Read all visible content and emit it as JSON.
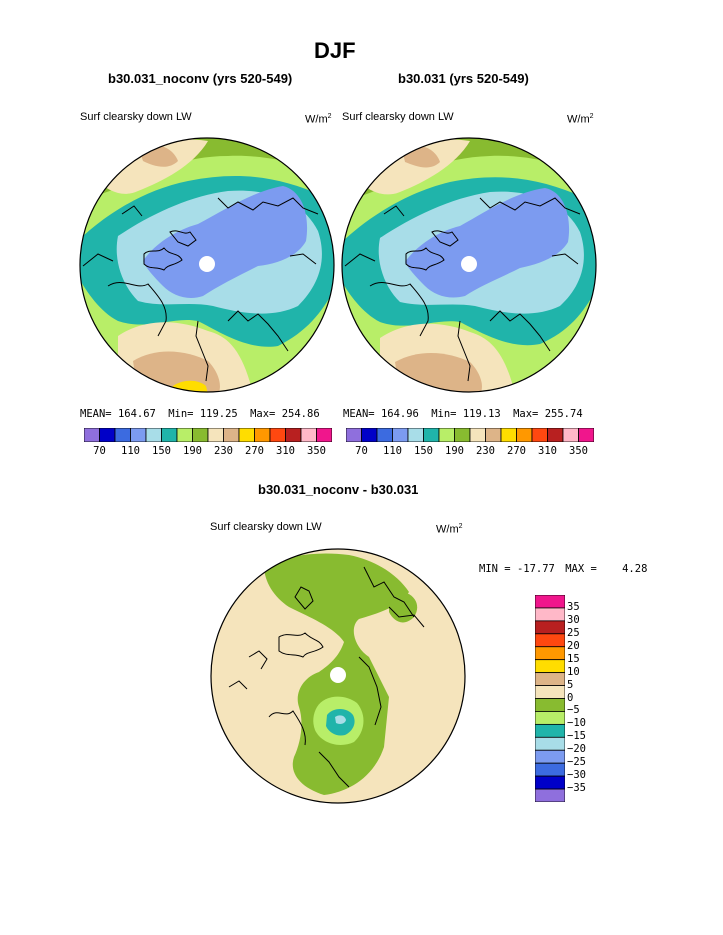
{
  "page": {
    "title": "DJF"
  },
  "colors": {
    "palette": [
      "#8F6FDD",
      "#0000C8",
      "#3C6BE0",
      "#7C9BF0",
      "#A8DDE8",
      "#20B4AA",
      "#B8EE68",
      "#88BB30",
      "#F5E4BC",
      "#DDB488",
      "#FFDD00",
      "#FF9800",
      "#FF4810",
      "#B82020",
      "#FFB8C8",
      "#F0168C"
    ],
    "ocean": "#A8DDE8",
    "coast": "#000000"
  },
  "panels": [
    {
      "run_title": "b30.031_noconv (yrs 520-549)",
      "var_label": "Surf clearsky down LW",
      "units_base": "W/m",
      "units_exp": "2",
      "mean_label": "MEAN=",
      "mean_value": "164.67",
      "min_label": "Min=",
      "min_value": "119.25",
      "max_label": "Max=",
      "max_value": "254.86",
      "colorbar_labels": [
        "70",
        "110",
        "150",
        "190",
        "230",
        "270",
        "310",
        "350"
      ]
    },
    {
      "run_title": "b30.031 (yrs 520-549)",
      "var_label": "Surf clearsky down LW",
      "units_base": "W/m",
      "units_exp": "2",
      "mean_label": "MEAN=",
      "mean_value": "164.96",
      "min_label": "Min=",
      "min_value": "119.13",
      "max_label": "Max=",
      "max_value": "255.74",
      "colorbar_labels": [
        "70",
        "110",
        "150",
        "190",
        "230",
        "270",
        "310",
        "350"
      ]
    }
  ],
  "diff": {
    "title": "b30.031_noconv - b30.031",
    "var_label": "Surf clearsky down LW",
    "units_base": "W/m",
    "units_exp": "2",
    "min_label": "MIN =",
    "min_value": "-17.77",
    "max_label": "MAX =",
    "max_value": "4.28",
    "colorbar_labels": [
      "35",
      "30",
      "25",
      "20",
      "15",
      "10",
      "5",
      "0",
      "−5",
      "−10",
      "−15",
      "−20",
      "−25",
      "−30",
      "−35"
    ],
    "colorbar_colors": [
      "#F0168C",
      "#FFB8C8",
      "#B82020",
      "#FF4810",
      "#FF9800",
      "#FFDD00",
      "#DDB488",
      "#F5E4BC",
      "#88BB30",
      "#B8EE68",
      "#20B4AA",
      "#A8DDE8",
      "#7C9BF0",
      "#3C6BE0",
      "#0000C8",
      "#8F6FDD"
    ]
  },
  "chart_data": [
    {
      "type": "heatmap",
      "projection": "north-polar-stereographic",
      "title": "b30.031_noconv (yrs 520-549)",
      "variable": "Surf clearsky down LW",
      "units": "W/m2",
      "levels": [
        70,
        90,
        110,
        130,
        150,
        170,
        190,
        210,
        230,
        250,
        270,
        290,
        310,
        330,
        350
      ],
      "mean": 164.67,
      "min": 119.25,
      "max": 254.86
    },
    {
      "type": "heatmap",
      "projection": "north-polar-stereographic",
      "title": "b30.031 (yrs 520-549)",
      "variable": "Surf clearsky down LW",
      "units": "W/m2",
      "levels": [
        70,
        90,
        110,
        130,
        150,
        170,
        190,
        210,
        230,
        250,
        270,
        290,
        310,
        330,
        350
      ],
      "mean": 164.96,
      "min": 119.13,
      "max": 255.74
    },
    {
      "type": "heatmap",
      "projection": "north-polar-stereographic",
      "title": "b30.031_noconv - b30.031",
      "variable": "Surf clearsky down LW",
      "units": "W/m2",
      "levels": [
        -35,
        -30,
        -25,
        -20,
        -15,
        -10,
        -5,
        0,
        5,
        10,
        15,
        20,
        25,
        30,
        35
      ],
      "min": -17.77,
      "max": 4.28
    }
  ]
}
